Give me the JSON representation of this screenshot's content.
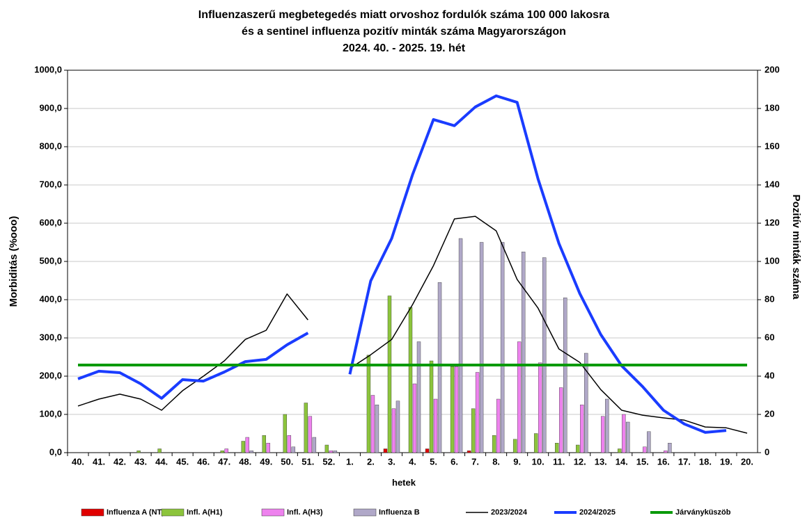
{
  "chart_data": {
    "type": "bar",
    "title": [
      "Influenzaszerű megbetegedés miatt orvoshoz fordulók száma 100 000 lakosra",
      "és a sentinel influenza pozitív minták száma Magyarországon",
      "2024. 40. - 2025. 19. hét"
    ],
    "x_label": "hetek",
    "y_label": "Morbiditás (%ooo)",
    "y2_label": "Pozitív minták száma",
    "categories": [
      "40.",
      "41.",
      "42.",
      "43.",
      "44.",
      "45.",
      "46.",
      "47.",
      "48.",
      "49.",
      "50.",
      "51.",
      "52.",
      "1.",
      "2.",
      "3.",
      "4.",
      "5.",
      "6.",
      "7.",
      "8.",
      "9.",
      "10.",
      "11.",
      "12.",
      "13.",
      "14.",
      "15.",
      "16.",
      "17.",
      "18.",
      "19.",
      "20."
    ],
    "ylim": [
      0,
      1000
    ],
    "yticks": [
      {
        "value": 0,
        "label": "0,0"
      },
      {
        "value": 100,
        "label": "100,0"
      },
      {
        "value": 200,
        "label": "200,0"
      },
      {
        "value": 300,
        "label": "300,0"
      },
      {
        "value": 400,
        "label": "400,0"
      },
      {
        "value": 500,
        "label": "500,0"
      },
      {
        "value": 600,
        "label": "600,0"
      },
      {
        "value": 700,
        "label": "700,0"
      },
      {
        "value": 800,
        "label": "800,0"
      },
      {
        "value": 900,
        "label": "900,0"
      },
      {
        "value": 1000,
        "label": "1000,0"
      }
    ],
    "y2lim": [
      0,
      200
    ],
    "y2ticks": [
      0,
      20,
      40,
      60,
      80,
      100,
      120,
      140,
      160,
      180,
      200
    ],
    "grid": true,
    "series": [
      {
        "name": "Influenza A (NT)",
        "type": "bar",
        "axis": "y2",
        "color": "#e00000",
        "values": [
          0,
          0,
          0,
          0,
          0,
          0,
          0,
          0,
          0,
          0,
          0,
          0,
          0,
          0,
          0,
          2,
          0,
          2,
          0,
          1,
          0,
          0,
          0,
          0,
          0,
          0,
          0,
          0,
          0,
          0,
          0,
          0,
          0
        ]
      },
      {
        "name": "Infl. A(H1)",
        "type": "bar",
        "axis": "y2",
        "color": "#8cc43c",
        "values": [
          0,
          0,
          0,
          1,
          2,
          0,
          0,
          1,
          6,
          9,
          20,
          26,
          4,
          0,
          51,
          82,
          76,
          48,
          45,
          23,
          9,
          7,
          10,
          5,
          4,
          0,
          2,
          0,
          0,
          0,
          0,
          0,
          0
        ]
      },
      {
        "name": "Infl. A(H3)",
        "type": "bar",
        "axis": "y2",
        "color": "#ee82ee",
        "values": [
          0,
          0,
          0,
          0,
          0,
          0,
          0,
          2,
          8,
          5,
          9,
          19,
          1,
          0,
          30,
          23,
          36,
          28,
          45,
          42,
          28,
          58,
          47,
          34,
          25,
          19,
          20,
          3,
          1,
          0,
          0,
          0,
          0
        ]
      },
      {
        "name": "Influenza B",
        "type": "bar",
        "axis": "y2",
        "color": "#b0a8c8",
        "values": [
          0,
          0,
          0,
          0,
          0,
          0,
          0,
          0,
          1,
          0,
          3,
          8,
          1,
          0,
          25,
          27,
          58,
          89,
          112,
          110,
          110,
          105,
          102,
          81,
          52,
          28,
          16,
          11,
          5,
          0,
          0,
          0,
          0
        ]
      },
      {
        "name": "2023/2024",
        "type": "line",
        "axis": "y",
        "color": "#000000",
        "width": 1.5,
        "values": [
          122,
          140,
          153,
          140,
          111,
          162,
          200,
          240,
          296,
          320,
          415,
          347,
          null,
          220,
          256,
          296,
          387,
          489,
          611,
          618,
          580,
          453,
          378,
          271,
          236,
          165,
          111,
          98,
          91,
          85,
          67,
          65,
          51
        ]
      },
      {
        "name": "2024/2025",
        "type": "line",
        "axis": "y",
        "color": "#1a3cff",
        "width": 4,
        "values": [
          193,
          213,
          209,
          180,
          142,
          191,
          187,
          211,
          238,
          244,
          282,
          313,
          null,
          205,
          449,
          560,
          727,
          871,
          855,
          904,
          933,
          916,
          716,
          547,
          416,
          309,
          227,
          173,
          111,
          75,
          53,
          58,
          null
        ]
      },
      {
        "name": "Járványküszöb",
        "type": "line",
        "axis": "y",
        "color": "#0a9a0a",
        "width": 4,
        "values": [
          229,
          229,
          229,
          229,
          229,
          229,
          229,
          229,
          229,
          229,
          229,
          229,
          229,
          229,
          229,
          229,
          229,
          229,
          229,
          229,
          229,
          229,
          229,
          229,
          229,
          229,
          229,
          229,
          229,
          229,
          229,
          229,
          229
        ]
      }
    ]
  }
}
